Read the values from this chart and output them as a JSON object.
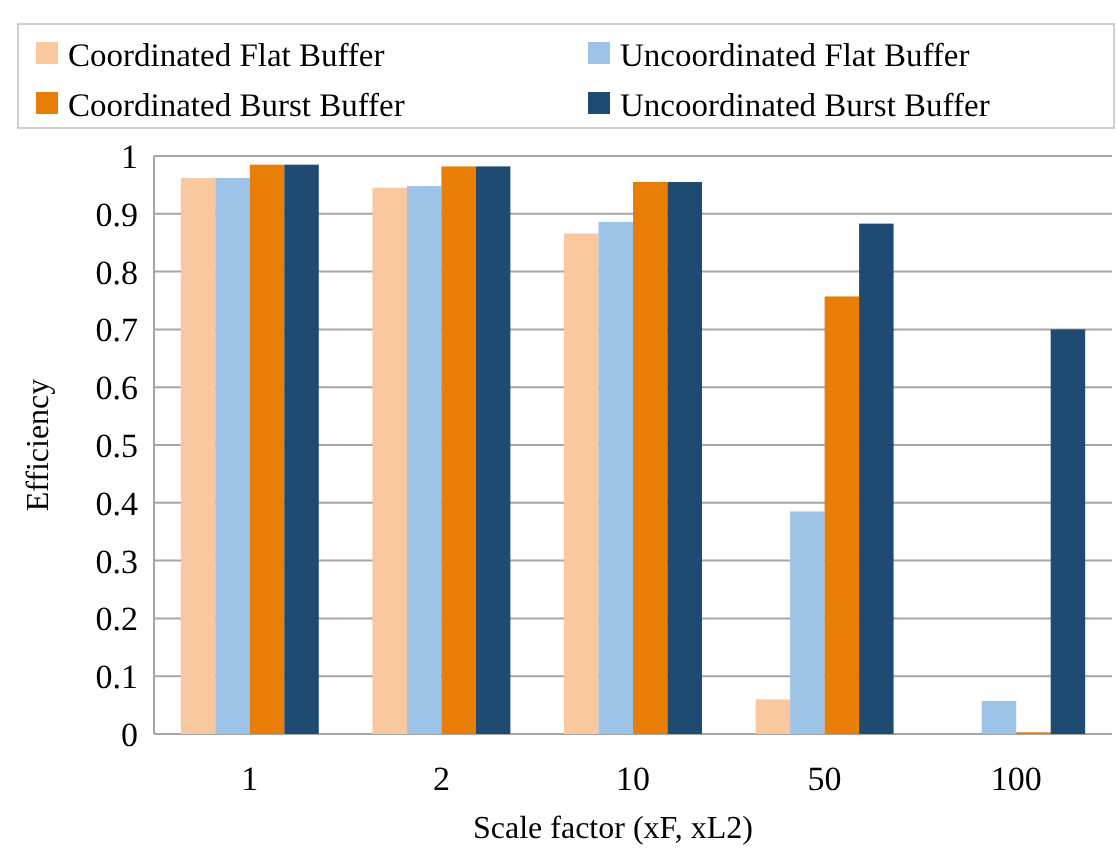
{
  "chart_data": {
    "type": "bar",
    "xlabel": "Scale factor (xF, xL2)",
    "ylabel": "Efficiency",
    "categories": [
      "1",
      "2",
      "10",
      "50",
      "100"
    ],
    "series": [
      {
        "name": "Coordinated Flat Buffer",
        "color": "#fac89e",
        "values": [
          0.962,
          0.945,
          0.866,
          0.06,
          0
        ]
      },
      {
        "name": "Uncoordinated Flat Buffer",
        "color": "#9dc3e6",
        "values": [
          0.962,
          0.948,
          0.886,
          0.385,
          0.057
        ]
      },
      {
        "name": "Coordinated Burst Buffer",
        "color": "#e97e06",
        "values": [
          0.985,
          0.982,
          0.955,
          0.757,
          0.003
        ]
      },
      {
        "name": "Uncoordinated Burst Buffer",
        "color": "#1f4a72",
        "values": [
          0.985,
          0.982,
          0.955,
          0.883,
          0.7
        ]
      }
    ],
    "ylim": [
      0,
      1
    ],
    "yticks": [
      0,
      0.1,
      0.2,
      0.3,
      0.4,
      0.5,
      0.6,
      0.7,
      0.8,
      0.9,
      1
    ],
    "grid": "y",
    "legend": "top"
  }
}
